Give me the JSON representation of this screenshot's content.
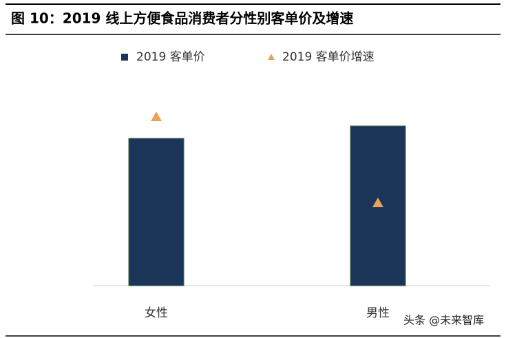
{
  "chart_data": {
    "type": "bar",
    "title": "图 10：2019 线上方便食品消费者分性别客单价及增速",
    "categories": [
      "女性",
      "男性"
    ],
    "series": [
      {
        "name": "2019 客单价",
        "color": "#1b3558",
        "values": [
          214,
          232
        ]
      },
      {
        "name": "2019 客单价增速",
        "color": "#e8a25a",
        "values": [
          245,
          120
        ],
        "axis": "y2",
        "marker": "triangle"
      }
    ],
    "ylim": [
      0,
      250
    ],
    "y2lim": [
      0,
      250
    ],
    "watermark": "头条 @未来智库"
  }
}
